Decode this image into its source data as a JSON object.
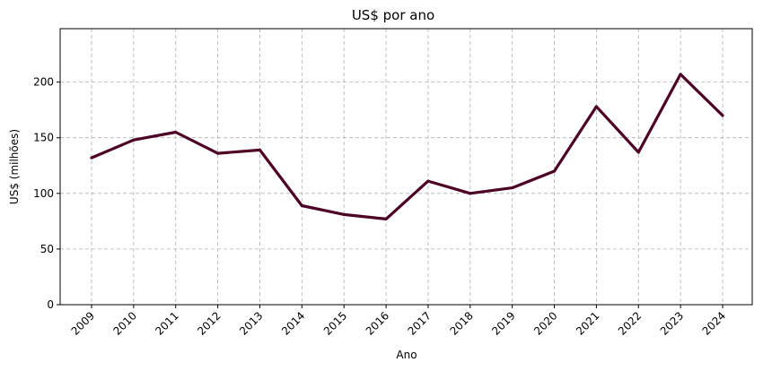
{
  "chart_data": {
    "type": "line",
    "title": "US$ por ano",
    "xlabel": "Ano",
    "ylabel": "US$ (milhões)",
    "categories": [
      "2009",
      "2010",
      "2011",
      "2012",
      "2013",
      "2014",
      "2015",
      "2016",
      "2017",
      "2018",
      "2019",
      "2020",
      "2021",
      "2022",
      "2023",
      "2024"
    ],
    "series": [
      {
        "values": [
          132,
          148,
          155,
          136,
          139,
          89,
          81,
          77,
          111,
          100,
          105,
          120,
          178,
          137,
          207,
          170
        ]
      }
    ],
    "ylim": [
      0,
      248
    ],
    "yticks": [
      0,
      50,
      100,
      150,
      200
    ],
    "grid": true,
    "line_color": "#4d0024"
  }
}
